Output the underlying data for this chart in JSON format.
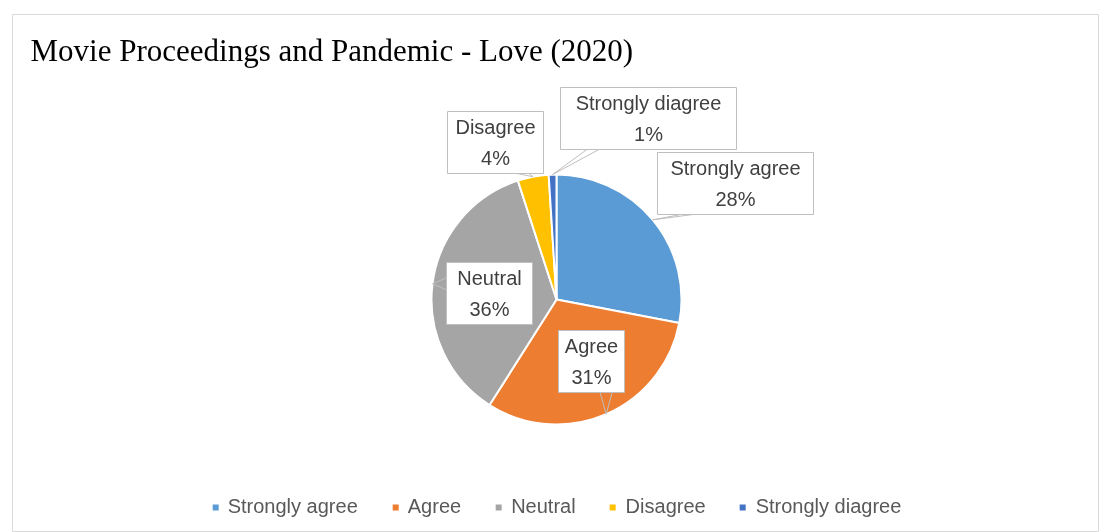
{
  "chart_data": {
    "type": "pie",
    "title": "Movie Proceedings and Pandemic - Love (2020)",
    "categories": [
      "Strongly agree",
      "Agree",
      "Neutral",
      "Disagree",
      "Strongly diagree"
    ],
    "values": [
      28,
      31,
      36,
      4,
      1
    ],
    "colors": [
      "#5b9bd5",
      "#ed7d31",
      "#a5a5a5",
      "#ffc000",
      "#4472c4"
    ],
    "value_labels": [
      "28%",
      "31%",
      "36%",
      "4%",
      "1%"
    ],
    "legend": "bottom"
  }
}
